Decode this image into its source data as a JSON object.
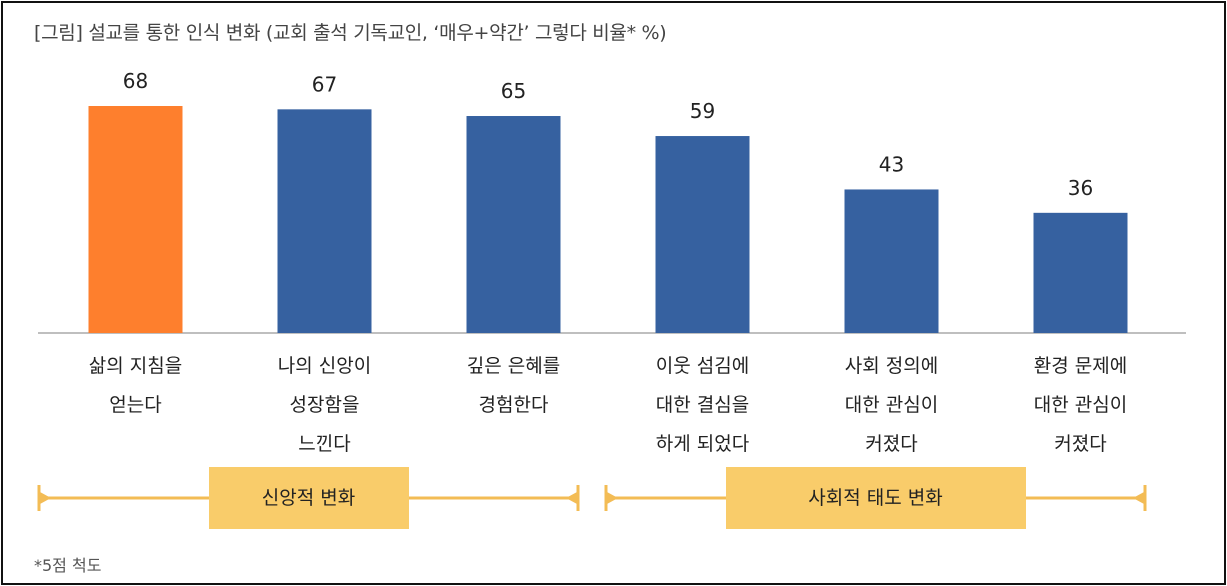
{
  "title": "[그림] 설교를 통한 인식 변화 (교회 출석 기독교인, ‘매우+약간’ 그렇다 비율* %)",
  "footnote": "*5점 척도",
  "colors": {
    "highlight": "#FE7F2D",
    "bar": "#3661A0",
    "group_band": "#F9CC6A",
    "group_line": "#F3BC55",
    "axis": "#BFBFBF"
  },
  "groups": [
    {
      "label": "신앙적 변화",
      "start_index": 0,
      "end_index": 2
    },
    {
      "label": "사회적 태도 변화",
      "start_index": 3,
      "end_index": 5
    }
  ],
  "chart_data": {
    "type": "bar",
    "title": "[그림] 설교를 통한 인식 변화 (교회 출석 기독교인, ‘매우+약간’ 그렇다 비율* %)",
    "categories": [
      "삶의 지침을\n얻는다",
      "나의 신앙이\n성장함을\n느낀다",
      "깊은 은혜를\n경험한다",
      "이웃 섬김에\n대한 결심을\n하게 되었다",
      "사회 정의에\n대한 관심이\n커졌다",
      "환경 문제에\n대한 관심이\n커졌다"
    ],
    "values": [
      68,
      67,
      65,
      59,
      43,
      36
    ],
    "data_labels": [
      "68",
      "67",
      "65",
      "59",
      "43",
      "36"
    ],
    "highlight_index": 0,
    "ylim": [
      0,
      68
    ],
    "grid": false,
    "xlabel": "",
    "ylabel": ""
  }
}
